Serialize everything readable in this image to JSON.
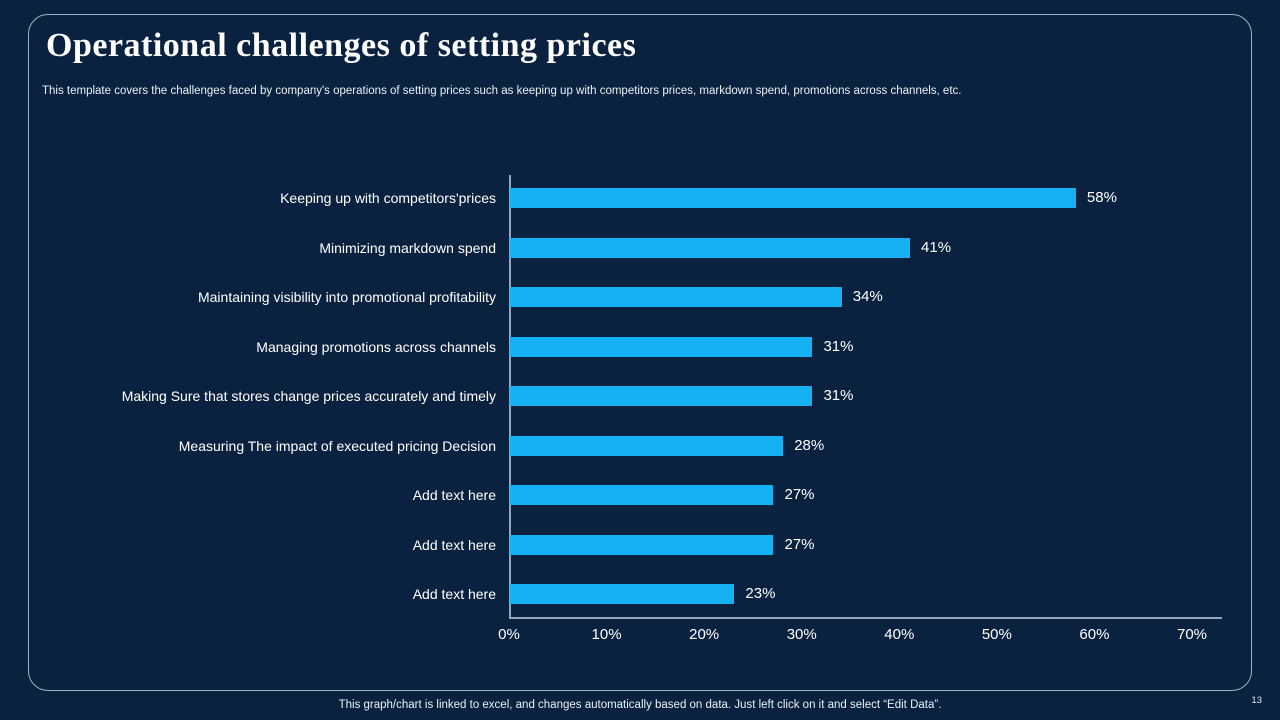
{
  "slide": {
    "title": "Operational challenges of setting prices",
    "subtitle": "This template covers the challenges faced by company's operations of setting prices such as keeping up with competitors prices, markdown spend, promotions across channels, etc.",
    "footer": "This graph/chart is linked to excel,  and changes automatically based on data. Just left click on it and select “Edit Data”.",
    "page_number": "13"
  },
  "colors": {
    "background": "#0a2240",
    "bar": "#16b1f2",
    "frame_border": "#9db2c6",
    "axis_line": "#93a7bb",
    "text": "#ffffff"
  },
  "chart_data": {
    "type": "bar",
    "orientation": "horizontal",
    "title": "",
    "xlabel": "",
    "ylabel": "",
    "categories": [
      "Keeping up with competitors'prices",
      "Minimizing markdown spend",
      "Maintaining visibility into promotional profitability",
      "Managing promotions across channels",
      "Making Sure that stores change prices accurately and timely",
      "Measuring The impact of executed pricing Decision",
      "Add text here",
      "Add text here",
      "Add text here"
    ],
    "values": [
      58,
      41,
      34,
      31,
      31,
      28,
      27,
      27,
      23
    ],
    "value_labels": [
      "58%",
      "41%",
      "34%",
      "31%",
      "31%",
      "28%",
      "27%",
      "27%",
      "23%"
    ],
    "x_ticks": [
      "0%",
      "10%",
      "20%",
      "30%",
      "40%",
      "50%",
      "60%",
      "70%"
    ],
    "xlim": [
      0,
      70
    ],
    "grid": false,
    "legend": false
  }
}
